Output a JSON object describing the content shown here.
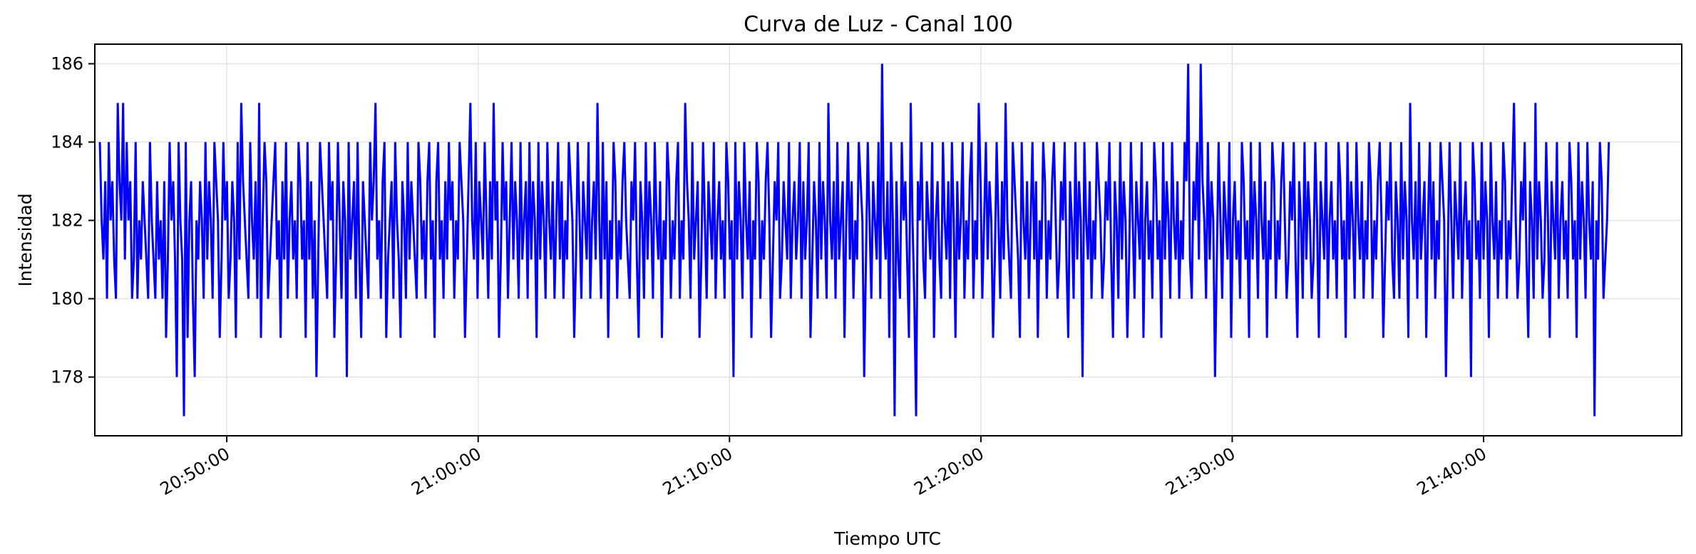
{
  "chart_data": {
    "type": "line",
    "title": "Curva de Luz - Canal 100",
    "xlabel": "Tiempo UTC",
    "ylabel": "Intensidad",
    "xlim": [
      "20:44:45",
      "21:47:53"
    ],
    "ylim": [
      176.5,
      186.5
    ],
    "x_ticks": [
      "20:50:00",
      "21:00:00",
      "21:10:00",
      "21:20:00",
      "21:30:00",
      "21:40:00"
    ],
    "y_ticks": [
      178,
      180,
      182,
      184,
      186
    ],
    "grid": true,
    "legend": "none",
    "series": [
      {
        "color": "#0000ff",
        "x_start": "20:44:57",
        "x_end": "21:44:59",
        "sample_interval_s": 3,
        "values": [
          184,
          182,
          181,
          183,
          180,
          184,
          182,
          183,
          181,
          180,
          185,
          183,
          182,
          185,
          181,
          184,
          182,
          183,
          180,
          181,
          184,
          180,
          182,
          181,
          183,
          182,
          181,
          180,
          184,
          182,
          181,
          180,
          183,
          181,
          182,
          180,
          183,
          179,
          181,
          184,
          182,
          183,
          181,
          178,
          184,
          182,
          181,
          177,
          184,
          179,
          182,
          183,
          180,
          178,
          182,
          181,
          183,
          182,
          180,
          184,
          181,
          183,
          182,
          180,
          184,
          183,
          182,
          179,
          181,
          184,
          182,
          183,
          180,
          181,
          183,
          182,
          179,
          184,
          181,
          185,
          183,
          182,
          181,
          180,
          184,
          182,
          181,
          183,
          180,
          185,
          179,
          182,
          184,
          183,
          180,
          181,
          182,
          183,
          184,
          181,
          182,
          179,
          183,
          181,
          184,
          180,
          182,
          183,
          181,
          182,
          180,
          184,
          183,
          181,
          182,
          179,
          184,
          181,
          183,
          180,
          182,
          178,
          181,
          184,
          183,
          182,
          181,
          180,
          184,
          182,
          183,
          179,
          181,
          184,
          182,
          180,
          183,
          182,
          178,
          184,
          181,
          182,
          183,
          180,
          184,
          181,
          179,
          183,
          182,
          181,
          180,
          184,
          182,
          183,
          185,
          181,
          182,
          180,
          183,
          184,
          179,
          181,
          182,
          183,
          180,
          184,
          182,
          181,
          179,
          183,
          182,
          180,
          184,
          181,
          183,
          182,
          181,
          180,
          184,
          183,
          181,
          182,
          180,
          183,
          184,
          181,
          182,
          179,
          183,
          184,
          181,
          182,
          180,
          183,
          181,
          184,
          182,
          183,
          180,
          182,
          181,
          184,
          183,
          182,
          179,
          181,
          183,
          185,
          182,
          181,
          184,
          180,
          183,
          182,
          181,
          184,
          182,
          180,
          183,
          181,
          185,
          182,
          183,
          179,
          181,
          184,
          182,
          183,
          180,
          182,
          184,
          181,
          183,
          182,
          180,
          184,
          181,
          182,
          183,
          180,
          184,
          181,
          183,
          182,
          179,
          184,
          181,
          183,
          182,
          180,
          184,
          182,
          181,
          183,
          180,
          182,
          184,
          181,
          183,
          180,
          182,
          181,
          184,
          183,
          182,
          179,
          181,
          184,
          182,
          180,
          183,
          182,
          181,
          184,
          180,
          182,
          183,
          181,
          185,
          182,
          180,
          184,
          181,
          183,
          179,
          182,
          181,
          184,
          183,
          180,
          182,
          181,
          183,
          184,
          182,
          181,
          180,
          183,
          182,
          184,
          181,
          179,
          183,
          182,
          180,
          184,
          181,
          183,
          182,
          180,
          184,
          182,
          181,
          183,
          179,
          182,
          181,
          184,
          183,
          180,
          182,
          181,
          183,
          184,
          180,
          182,
          181,
          185,
          183,
          182,
          180,
          184,
          181,
          182,
          183,
          179,
          181,
          184,
          182,
          180,
          183,
          182,
          181,
          184,
          180,
          182,
          183,
          181,
          182,
          180,
          184,
          183,
          181,
          182,
          178,
          184,
          181,
          183,
          182,
          180,
          184,
          182,
          181,
          183,
          179,
          182,
          181,
          184,
          183,
          180,
          182,
          181,
          183,
          184,
          182,
          179,
          181,
          183,
          182,
          184,
          180,
          181,
          183,
          182,
          181,
          184,
          180,
          182,
          183,
          181,
          182,
          184,
          180,
          183,
          181,
          182,
          184,
          179,
          181,
          183,
          182,
          180,
          184,
          181,
          183,
          182,
          180,
          185,
          182,
          181,
          183,
          180,
          184,
          181,
          182,
          183,
          179,
          182,
          184,
          181,
          183,
          180,
          182,
          181,
          184,
          183,
          182,
          178,
          181,
          184,
          182,
          180,
          183,
          182,
          181,
          184,
          180,
          186,
          182,
          181,
          183,
          179,
          184,
          182,
          177,
          183,
          181,
          180,
          184,
          182,
          183,
          181,
          179,
          185,
          182,
          180,
          177,
          183,
          182,
          184,
          181,
          180,
          183,
          182,
          181,
          184,
          179,
          182,
          183,
          181,
          180,
          184,
          182,
          181,
          183,
          180,
          184,
          182,
          179,
          183,
          181,
          182,
          184,
          180,
          182,
          181,
          183,
          184,
          180,
          182,
          181,
          185,
          183,
          180,
          182,
          184,
          181,
          183,
          182,
          179,
          181,
          184,
          182,
          180,
          183,
          181,
          185,
          182,
          181,
          180,
          184,
          183,
          182,
          181,
          179,
          184,
          182,
          181,
          183,
          180,
          182,
          184,
          181,
          183,
          179,
          182,
          181,
          184,
          183,
          180,
          182,
          181,
          183,
          184,
          182,
          180,
          181,
          183,
          182,
          184,
          181,
          179,
          183,
          182,
          180,
          184,
          181,
          183,
          182,
          178,
          184,
          182,
          181,
          183,
          180,
          182,
          181,
          184,
          183,
          182,
          180,
          181,
          183,
          182,
          184,
          181,
          179,
          183,
          182,
          180,
          184,
          181,
          183,
          182,
          179,
          181,
          184,
          182,
          180,
          183,
          182,
          181,
          184,
          179,
          182,
          183,
          181,
          182,
          180,
          184,
          183,
          181,
          182,
          179,
          184,
          181,
          183,
          182,
          180,
          184,
          182,
          181,
          183,
          180,
          182,
          181,
          184,
          183,
          186,
          181,
          180,
          183,
          182,
          184,
          181,
          186,
          183,
          182,
          180,
          184,
          181,
          183,
          182,
          178,
          181,
          184,
          182,
          180,
          183,
          182,
          181,
          184,
          179,
          182,
          183,
          181,
          182,
          180,
          184,
          183,
          181,
          182,
          179,
          184,
          181,
          183,
          182,
          180,
          184,
          182,
          181,
          183,
          179,
          182,
          181,
          184,
          183,
          180,
          182,
          181,
          183,
          184,
          182,
          180,
          181,
          183,
          182,
          184,
          181,
          179,
          183,
          182,
          180,
          184,
          181,
          183,
          182,
          180,
          181,
          184,
          182,
          179,
          183,
          182,
          181,
          184,
          180,
          182,
          183,
          181,
          182,
          180,
          184,
          183,
          181,
          182,
          179,
          184,
          181,
          183,
          182,
          180,
          184,
          182,
          181,
          183,
          180,
          182,
          181,
          184,
          183,
          180,
          182,
          181,
          183,
          184,
          182,
          179,
          181,
          183,
          182,
          184,
          181,
          180,
          183,
          182,
          180,
          184,
          181,
          183,
          182,
          179,
          185,
          182,
          181,
          183,
          180,
          184,
          181,
          182,
          183,
          179,
          182,
          184,
          181,
          183,
          180,
          182,
          181,
          184,
          183,
          182,
          178,
          181,
          184,
          182,
          180,
          183,
          182,
          181,
          184,
          180,
          182,
          183,
          181,
          182,
          178,
          184,
          183,
          181,
          182,
          180,
          184,
          181,
          183,
          182,
          179,
          184,
          182,
          181,
          183,
          180,
          182,
          181,
          184,
          183,
          180,
          182,
          181,
          183,
          185,
          182,
          180,
          181,
          183,
          182,
          184,
          181,
          179,
          183,
          182,
          180,
          185,
          181,
          183,
          182,
          180,
          181,
          184,
          182,
          179,
          183,
          182,
          181,
          184,
          180,
          182,
          183,
          181,
          182,
          180,
          184,
          183,
          181,
          182,
          179,
          184,
          181,
          183,
          182,
          180,
          184,
          182,
          181,
          183,
          177,
          182,
          181,
          184,
          183,
          180,
          181,
          182,
          184
        ]
      }
    ]
  }
}
